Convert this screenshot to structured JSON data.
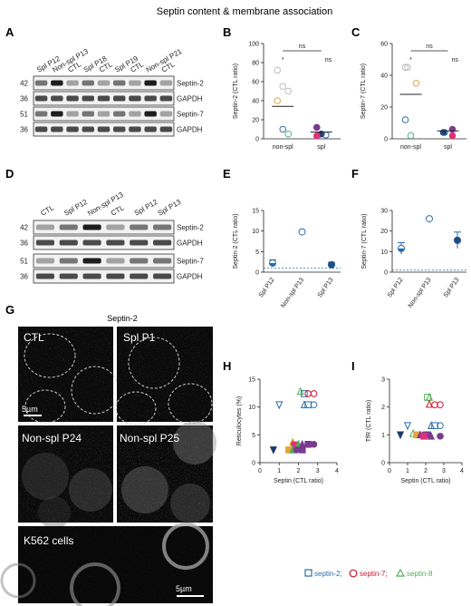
{
  "title": "Septin content & membrane association",
  "panel_letters": {
    "A": "A",
    "B": "B",
    "C": "C",
    "D": "D",
    "E": "E",
    "F": "F",
    "G": "G",
    "H": "H",
    "I": "I"
  },
  "colors": {
    "blue": "#2a6ca8",
    "purple": "#7a3b8f",
    "red": "#d0122c",
    "black": "#222",
    "green": "#4caf50",
    "orange": "#e8a23a",
    "navy": "#1f3a6e",
    "pink": "#e0307a"
  },
  "blotA": {
    "lanes": [
      {
        "label": "Spl P12",
        "color": "blue"
      },
      {
        "label": "Non-spl P13",
        "color": "blue"
      },
      {
        "label": "CTL",
        "color": "black"
      },
      {
        "label": "Spl P18",
        "color": "purple"
      },
      {
        "label": "CTL",
        "color": "black"
      },
      {
        "label": "Spl P19",
        "color": "red"
      },
      {
        "label": "CTL",
        "color": "black"
      },
      {
        "label": "Non-spl P21",
        "color": "red"
      },
      {
        "label": "CTL",
        "color": "black"
      }
    ],
    "rows": [
      {
        "mw": "42",
        "name": "Septin-2"
      },
      {
        "mw": "36",
        "name": "GAPDH"
      },
      {
        "mw": "51",
        "name": "Septin-7"
      },
      {
        "mw": "36",
        "name": "GAPDH"
      }
    ]
  },
  "blotD": {
    "lanes": [
      {
        "label": "CTL",
        "color": "black"
      },
      {
        "label": "Spl P12",
        "color": "blue"
      },
      {
        "label": "Non-spl P13",
        "color": "blue"
      },
      {
        "label": "CTL",
        "color": "black"
      },
      {
        "label": "Spl P12",
        "color": "blue"
      },
      {
        "label": "Spl P13",
        "color": "blue"
      }
    ],
    "rows": [
      {
        "mw": "42",
        "name": "Septin-2"
      },
      {
        "mw": "36",
        "name": "GAPDH"
      },
      {
        "mw": "51",
        "name": "Septin-7"
      },
      {
        "mw": "36",
        "name": "GAPDH"
      }
    ]
  },
  "micrographs": {
    "header": "Septin-2",
    "panels": [
      "CTL",
      "Spl P1",
      "Non-spl P24",
      "Non-spl P25"
    ],
    "k562": "K562 cells",
    "scale1": "5µm",
    "scale2": "5µm"
  },
  "stat_labels": {
    "ns": "ns",
    "star": "*"
  },
  "legend": {
    "septin2": "septin-2;",
    "septin7": "septin-7;",
    "septin8": "septin-8"
  },
  "chart_data": [
    {
      "panel": "B",
      "type": "scatter",
      "ylabel": "Septin-2 (CTL ratio)",
      "categories": [
        "non-spl",
        "spl"
      ],
      "ylim": [
        0,
        100
      ],
      "yticks": [
        0,
        20,
        40,
        60,
        80,
        100
      ],
      "points": [
        {
          "cat": "non-spl",
          "y": 72,
          "color": "#bbbbbb",
          "fill": false
        },
        {
          "cat": "non-spl",
          "y": 55,
          "color": "#bbbbbb",
          "fill": false
        },
        {
          "cat": "non-spl",
          "y": 50,
          "color": "#bbbbbb",
          "fill": false
        },
        {
          "cat": "non-spl",
          "y": 40,
          "color": "#e8a23a",
          "fill": false
        },
        {
          "cat": "non-spl",
          "y": 10,
          "color": "#2a6ca8",
          "fill": false
        },
        {
          "cat": "non-spl",
          "y": 5,
          "color": "#4caf8a",
          "fill": false
        },
        {
          "cat": "spl",
          "y": 12,
          "color": "#7a3b8f",
          "fill": true
        },
        {
          "cat": "spl",
          "y": 5,
          "color": "#1f3a6e",
          "fill": true
        },
        {
          "cat": "spl",
          "y": 4,
          "color": "#2a6ca8",
          "fill": false
        },
        {
          "cat": "spl",
          "y": 3,
          "color": "#e0307a",
          "fill": true
        }
      ],
      "means": {
        "non-spl": 34,
        "spl": 7
      }
    },
    {
      "panel": "C",
      "type": "scatter",
      "ylabel": "Septin-7 (CTL ratio)",
      "categories": [
        "non-spl",
        "spl"
      ],
      "ylim": [
        0,
        60
      ],
      "yticks": [
        0,
        20,
        40,
        60
      ],
      "points": [
        {
          "cat": "non-spl",
          "y": 45,
          "color": "#bbbbbb",
          "fill": false
        },
        {
          "cat": "non-spl",
          "y": 45,
          "color": "#bbbbbb",
          "fill": false
        },
        {
          "cat": "non-spl",
          "y": 35,
          "color": "#e8a23a",
          "fill": false
        },
        {
          "cat": "non-spl",
          "y": 12,
          "color": "#2a6ca8",
          "fill": false
        },
        {
          "cat": "non-spl",
          "y": 2,
          "color": "#4caf8a",
          "fill": false
        },
        {
          "cat": "spl",
          "y": 6,
          "color": "#7a3b8f",
          "fill": true
        },
        {
          "cat": "spl",
          "y": 4,
          "color": "#1f3a6e",
          "fill": true
        },
        {
          "cat": "spl",
          "y": 4,
          "color": "#2a6ca8",
          "fill": false
        },
        {
          "cat": "spl",
          "y": 2,
          "color": "#e0307a",
          "fill": true
        }
      ],
      "means": {
        "non-spl": 28,
        "spl": 5
      }
    },
    {
      "panel": "E",
      "type": "scatter",
      "ylabel": "Septin-2 (CTL ratio)",
      "categories": [
        "Spl P12",
        "Non-spl P13",
        "Spl P13"
      ],
      "ylim": [
        0,
        15
      ],
      "yticks": [
        0,
        5,
        10,
        15
      ],
      "dashed_y": 1,
      "points": [
        {
          "cat": "Spl P12",
          "y": 2.2,
          "err": 0.8,
          "style": "half"
        },
        {
          "cat": "Non-spl P13",
          "y": 9.8,
          "err": 0,
          "style": "open"
        },
        {
          "cat": "Spl P13",
          "y": 1.8,
          "err": 0.6,
          "style": "filled"
        }
      ]
    },
    {
      "panel": "F",
      "type": "scatter",
      "ylabel": "Septin-7 (CTL ratio)",
      "categories": [
        "Spl P12",
        "Non-spl P13",
        "Spl P13"
      ],
      "ylim": [
        0,
        30
      ],
      "yticks": [
        0,
        10,
        20,
        30
      ],
      "dashed_y": 1,
      "points": [
        {
          "cat": "Spl P12",
          "y": 11.5,
          "err": 2.8,
          "style": "half"
        },
        {
          "cat": "Non-spl P13",
          "y": 26,
          "err": 0,
          "style": "open"
        },
        {
          "cat": "Spl P13",
          "y": 15.5,
          "err": 4,
          "style": "filled"
        }
      ]
    },
    {
      "panel": "H",
      "type": "scatter",
      "xlabel": "Septin (CTL ratio)",
      "ylabel": "Reticulocytes (%)",
      "xlim": [
        0,
        4
      ],
      "ylim": [
        0,
        15
      ],
      "xticks": [
        0,
        1,
        2,
        3,
        4
      ],
      "yticks": [
        0,
        5,
        10,
        15
      ],
      "points": [
        {
          "x": 2.1,
          "y": 12.8,
          "shape": "triangle",
          "color": "#4caf50"
        },
        {
          "x": 2.3,
          "y": 12.4,
          "shape": "square",
          "color": "#2a6ca8"
        },
        {
          "x": 2.5,
          "y": 12.4,
          "shape": "circle",
          "color": "#d0122c"
        },
        {
          "x": 2.8,
          "y": 12.4,
          "shape": "circle",
          "color": "#d0122c"
        },
        {
          "x": 1.0,
          "y": 10.4,
          "shape": "triangle-down",
          "color": "#2a6ca8"
        },
        {
          "x": 2.3,
          "y": 10.4,
          "shape": "triangle",
          "color": "#2a6ca8"
        },
        {
          "x": 2.5,
          "y": 10.4,
          "shape": "square",
          "color": "#2a6ca8"
        },
        {
          "x": 2.8,
          "y": 10.4,
          "shape": "circle",
          "color": "#2a6ca8"
        },
        {
          "x": 1.7,
          "y": 3.7,
          "shape": "triangle",
          "color": "#e8a23a"
        },
        {
          "x": 1.8,
          "y": 3.2,
          "shape": "square",
          "color": "#e0307a"
        },
        {
          "x": 2.0,
          "y": 3.3,
          "shape": "triangle",
          "color": "#4caf50"
        },
        {
          "x": 2.2,
          "y": 3.3,
          "shape": "triangle",
          "color": "#7a3b8f"
        },
        {
          "x": 2.5,
          "y": 3.3,
          "shape": "square",
          "color": "#7a3b8f"
        },
        {
          "x": 2.8,
          "y": 3.3,
          "shape": "circle",
          "color": "#7a3b8f"
        },
        {
          "x": 0.7,
          "y": 2.3,
          "shape": "triangle-down",
          "color": "#1f3a6e"
        },
        {
          "x": 1.5,
          "y": 2.3,
          "shape": "square",
          "color": "#e8a23a"
        },
        {
          "x": 1.7,
          "y": 2.3,
          "shape": "triangle",
          "color": "#4caf50"
        },
        {
          "x": 1.9,
          "y": 2.3,
          "shape": "circle",
          "color": "#7a3b8f"
        },
        {
          "x": 2.2,
          "y": 2.3,
          "shape": "square",
          "color": "#7a3b8f"
        }
      ]
    },
    {
      "panel": "I",
      "type": "scatter",
      "xlabel": "Septin (CTL ratio)",
      "ylabel": "TfR (CTL ratio)",
      "xlim": [
        0,
        4
      ],
      "ylim": [
        0,
        3
      ],
      "xticks": [
        0,
        1,
        2,
        3,
        4
      ],
      "yticks": [
        0,
        1,
        2,
        3
      ],
      "points": [
        {
          "x": 2.1,
          "y": 2.35,
          "shape": "square",
          "color": "#4caf50"
        },
        {
          "x": 2.2,
          "y": 2.35,
          "shape": "triangle",
          "color": "#4caf50"
        },
        {
          "x": 2.2,
          "y": 2.1,
          "shape": "triangle",
          "color": "#d0122c"
        },
        {
          "x": 2.5,
          "y": 2.08,
          "shape": "circle",
          "color": "#d0122c"
        },
        {
          "x": 2.8,
          "y": 2.08,
          "shape": "circle",
          "color": "#d0122c"
        },
        {
          "x": 1.0,
          "y": 1.33,
          "shape": "triangle-down",
          "color": "#2a6ca8"
        },
        {
          "x": 2.3,
          "y": 1.33,
          "shape": "triangle",
          "color": "#2a6ca8"
        },
        {
          "x": 2.5,
          "y": 1.33,
          "shape": "square",
          "color": "#2a6ca8"
        },
        {
          "x": 2.8,
          "y": 1.33,
          "shape": "circle",
          "color": "#2a6ca8"
        },
        {
          "x": 0.6,
          "y": 1.0,
          "shape": "triangle-down",
          "color": "#1f3a6e"
        },
        {
          "x": 1.3,
          "y": 1.05,
          "shape": "triangle",
          "color": "#4caf50"
        },
        {
          "x": 1.5,
          "y": 1.0,
          "shape": "square",
          "color": "#e8a23a"
        },
        {
          "x": 1.7,
          "y": 1.0,
          "shape": "triangle",
          "color": "#7a3b8f"
        },
        {
          "x": 1.9,
          "y": 1.0,
          "shape": "circle",
          "color": "#7a3b8f"
        },
        {
          "x": 2.1,
          "y": 1.0,
          "shape": "square",
          "color": "#7a3b8f"
        },
        {
          "x": 1.9,
          "y": 0.95,
          "shape": "square",
          "color": "#e0307a"
        },
        {
          "x": 2.3,
          "y": 0.95,
          "shape": "triangle",
          "color": "#7a3b8f"
        },
        {
          "x": 2.8,
          "y": 0.95,
          "shape": "circle",
          "color": "#7a3b8f"
        }
      ]
    }
  ]
}
